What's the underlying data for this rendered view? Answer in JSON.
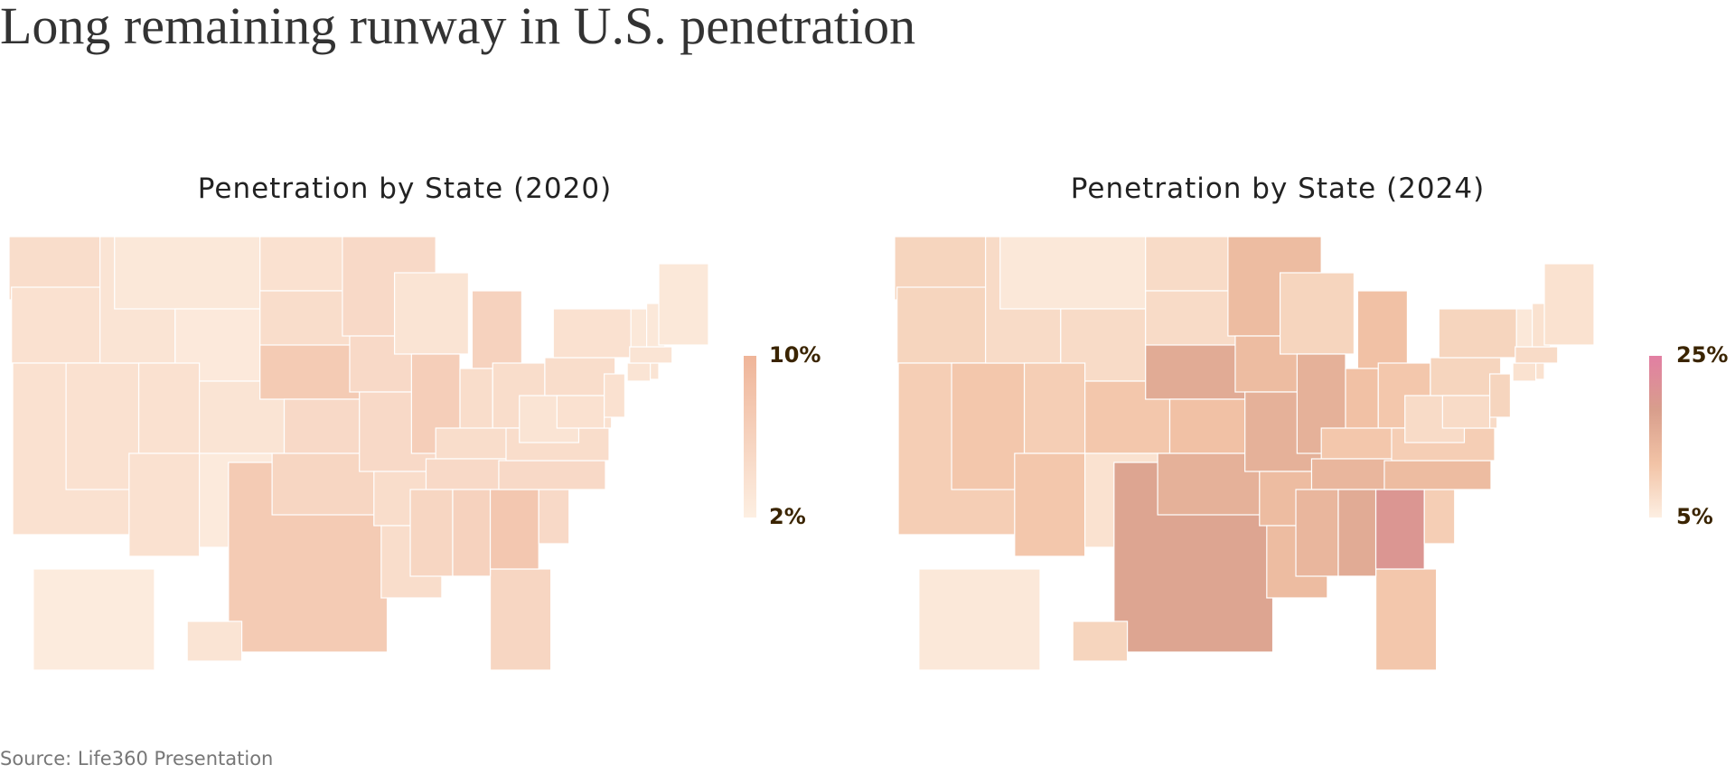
{
  "title": "Long remaining runway in U.S. penetration",
  "source": "Source: Life360 Presentation",
  "chart_data": [
    {
      "type": "choropleth",
      "title": "Penetration by State (2020)",
      "values": [
        4.5,
        4,
        4,
        4,
        3.5,
        3,
        2.8,
        4,
        4,
        3.5,
        2.7,
        4,
        4.5,
        7,
        5,
        7,
        5.5,
        5,
        5,
        5,
        4.5,
        4.5,
        3.5,
        6.5,
        6,
        4.5,
        4.5,
        4.5,
        5,
        5.5,
        5.5,
        6,
        7.5,
        5,
        5,
        4.5,
        3.5,
        4.5,
        4,
        4,
        4,
        4,
        3.5,
        3.5,
        3.5,
        3,
        3,
        3,
        2.5,
        3.5
      ],
      "clim": [
        2,
        10
      ],
      "colorscale": [
        "#fdefe2",
        "#efb599"
      ],
      "colorbar_ticks": [
        {
          "value": 10,
          "label": "10%"
        },
        {
          "value": 2,
          "label": "2%"
        }
      ]
    },
    {
      "type": "choropleth",
      "title": "Penetration by State (2024)",
      "values": [
        9,
        9,
        10,
        11,
        8,
        6,
        8,
        10,
        11,
        11,
        7,
        8,
        8,
        16,
        12,
        17,
        15,
        13,
        13,
        15,
        13,
        13,
        9,
        15,
        12,
        12,
        11,
        11,
        14,
        14,
        11,
        16,
        20,
        10,
        13,
        10,
        8,
        9,
        9,
        8,
        8,
        9,
        7,
        7,
        8,
        6,
        7,
        7,
        6,
        9
      ],
      "clim": [
        5,
        25
      ],
      "colorscale": [
        "#fdefe2",
        "#f2c3a6",
        "#d89e8c",
        "#e27fa3"
      ],
      "colorbar_ticks": [
        {
          "value": 25,
          "label": "25%"
        },
        {
          "value": 5,
          "label": "5%"
        }
      ]
    }
  ]
}
